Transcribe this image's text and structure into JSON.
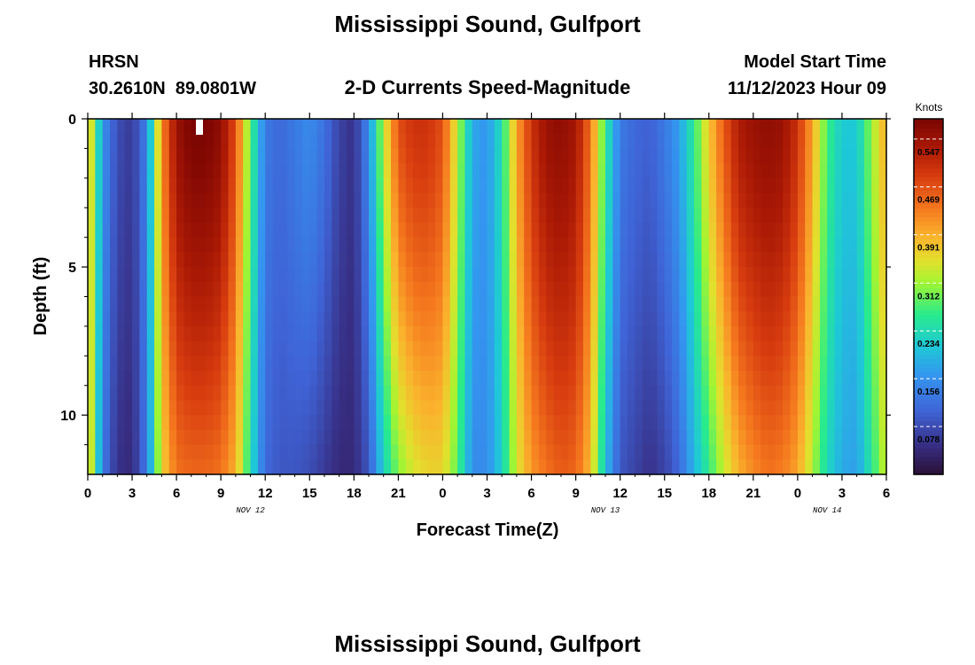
{
  "header": {
    "title": "Mississippi Sound, Gulfport",
    "station_id": "HRSN",
    "station_coords": "30.2610N  89.0801W",
    "product": "2-D Currents Speed-Magnitude",
    "model_start_label": "Model Start Time",
    "model_start_value": "11/12/2023 Hour 09"
  },
  "footer": {
    "title": "Mississippi Sound, Gulfport"
  },
  "chart_data": {
    "type": "heatmap",
    "title": "Mississippi Sound, Gulfport",
    "subtitle": "2-D Currents Speed-Magnitude",
    "xlabel": "Forecast Time(Z)",
    "ylabel": "Depth (ft)",
    "x_unit": "hours from 00Z Nov 12",
    "xlim": [
      0,
      54
    ],
    "ylim": [
      0,
      12
    ],
    "y_inverted": true,
    "x_ticks": [
      {
        "x": 0,
        "label": "0"
      },
      {
        "x": 3,
        "label": "3"
      },
      {
        "x": 6,
        "label": "6"
      },
      {
        "x": 9,
        "label": "9"
      },
      {
        "x": 12,
        "label": "12"
      },
      {
        "x": 15,
        "label": "15"
      },
      {
        "x": 18,
        "label": "18"
      },
      {
        "x": 21,
        "label": "21"
      },
      {
        "x": 24,
        "label": "0"
      },
      {
        "x": 27,
        "label": "3"
      },
      {
        "x": 30,
        "label": "6"
      },
      {
        "x": 33,
        "label": "9"
      },
      {
        "x": 36,
        "label": "12"
      },
      {
        "x": 39,
        "label": "15"
      },
      {
        "x": 42,
        "label": "18"
      },
      {
        "x": 45,
        "label": "21"
      },
      {
        "x": 48,
        "label": "0"
      },
      {
        "x": 51,
        "label": "3"
      },
      {
        "x": 54,
        "label": "6"
      }
    ],
    "date_labels": [
      {
        "x": 11,
        "label": "NOV 12"
      },
      {
        "x": 35,
        "label": "NOV 13"
      },
      {
        "x": 50,
        "label": "NOV 14"
      }
    ],
    "y_ticks": [
      {
        "y": 0,
        "label": "0"
      },
      {
        "y": 5,
        "label": "5"
      },
      {
        "y": 10,
        "label": "10"
      }
    ],
    "colorbar": {
      "unit_label": "Knots",
      "min": 0.0,
      "max": 0.58,
      "tick_values": [
        0.078,
        0.156,
        0.234,
        0.312,
        0.391,
        0.469,
        0.547
      ],
      "tick_labels": [
        "0.078",
        "0.156",
        "0.234",
        "0.312",
        "0.391",
        "0.469",
        "0.547"
      ]
    },
    "speed_profile": {
      "hours": [
        0,
        1,
        2,
        3,
        4,
        5,
        6,
        7,
        8,
        9,
        10,
        11,
        12,
        13,
        14,
        15,
        16,
        17,
        18,
        19,
        20,
        21,
        22,
        23,
        24,
        25,
        26,
        27,
        28,
        29,
        30,
        31,
        32,
        33,
        34,
        35,
        36,
        37,
        38,
        39,
        40,
        41,
        42,
        43,
        44,
        45,
        46,
        47,
        48,
        49,
        50,
        51,
        52,
        53,
        54
      ],
      "surface_knots": [
        0.4,
        0.16,
        0.08,
        0.06,
        0.14,
        0.42,
        0.55,
        0.58,
        0.58,
        0.56,
        0.47,
        0.28,
        0.13,
        0.11,
        0.13,
        0.15,
        0.12,
        0.07,
        0.05,
        0.15,
        0.33,
        0.47,
        0.5,
        0.5,
        0.47,
        0.33,
        0.18,
        0.16,
        0.24,
        0.4,
        0.5,
        0.55,
        0.56,
        0.54,
        0.44,
        0.26,
        0.13,
        0.11,
        0.1,
        0.13,
        0.17,
        0.26,
        0.37,
        0.46,
        0.53,
        0.55,
        0.56,
        0.55,
        0.5,
        0.4,
        0.27,
        0.21,
        0.21,
        0.31,
        0.4
      ],
      "bottom_knots": [
        0.4,
        0.13,
        0.05,
        0.04,
        0.13,
        0.36,
        0.44,
        0.45,
        0.45,
        0.44,
        0.39,
        0.24,
        0.11,
        0.09,
        0.09,
        0.08,
        0.06,
        0.04,
        0.04,
        0.09,
        0.22,
        0.3,
        0.34,
        0.36,
        0.36,
        0.28,
        0.15,
        0.15,
        0.22,
        0.34,
        0.41,
        0.44,
        0.46,
        0.45,
        0.38,
        0.2,
        0.09,
        0.07,
        0.05,
        0.07,
        0.11,
        0.19,
        0.26,
        0.33,
        0.39,
        0.42,
        0.44,
        0.43,
        0.4,
        0.32,
        0.23,
        0.18,
        0.17,
        0.25,
        0.34
      ]
    },
    "missing_cell": {
      "hour": 7.5,
      "depth": [
        0,
        0.5
      ]
    },
    "grid": false,
    "legend": "colorbar-right"
  }
}
